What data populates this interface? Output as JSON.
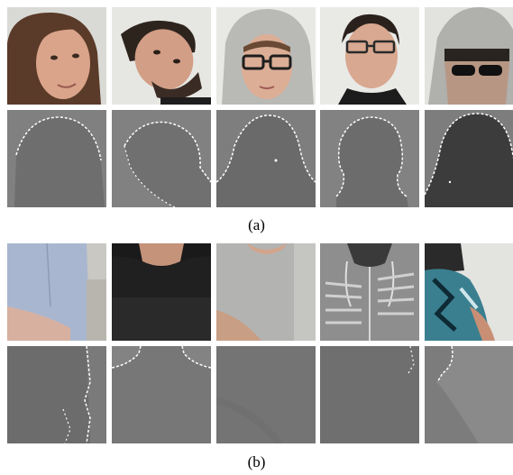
{
  "figure": {
    "panels": [
      {
        "caption": "(a)",
        "rgb_row": [
          {
            "name": "face-woman-brown-hair",
            "bg": "#d9dad6",
            "skin": "#d9a48a",
            "hair": "#5a3a28"
          },
          {
            "name": "face-man-tilted-beard",
            "bg": "#e6e6e2",
            "skin": "#d29e86",
            "hair": "#2e241e"
          },
          {
            "name": "face-woman-hood-glasses",
            "bg": "#e8e8e5",
            "skin": "#dcae96",
            "hair": "#b9b9b6"
          },
          {
            "name": "face-man-glasses",
            "bg": "#e9e9e6",
            "skin": "#d8a890",
            "hair": "#2a211c"
          },
          {
            "name": "face-hood-sunglasses",
            "bg": "#e2e2df",
            "skin": "#b79784",
            "hair": "#b0b0ad"
          }
        ],
        "depth_row": [
          {
            "name": "depth-head-1",
            "bg": "#808080",
            "fg": "#6e6e6e"
          },
          {
            "name": "depth-head-2",
            "bg": "#818181",
            "fg": "#707070"
          },
          {
            "name": "depth-head-3",
            "bg": "#7e7e7e",
            "fg": "#6a6a6a"
          },
          {
            "name": "depth-head-4",
            "bg": "#828282",
            "fg": "#6c6c6c"
          },
          {
            "name": "depth-head-5",
            "bg": "#7d7d7d",
            "fg": "#3c3c3c"
          }
        ]
      },
      {
        "caption": "(b)",
        "rgb_row": [
          {
            "name": "torso-blue-shirt",
            "bg": "#c9c8c2",
            "cloth": "#a9b6cf"
          },
          {
            "name": "torso-black-tshirt",
            "bg": "#1a1a1a",
            "cloth": "#202020"
          },
          {
            "name": "torso-grey-tshirt",
            "bg": "#cfcfcc",
            "cloth": "#b3b3b1"
          },
          {
            "name": "torso-grey-hoodie",
            "bg": "#d6d6d3",
            "cloth": "#8e8e8e"
          },
          {
            "name": "torso-teal-print",
            "bg": "#e3e3e0",
            "cloth": "#3a7f8f"
          }
        ],
        "depth_row": [
          {
            "name": "depth-torso-1",
            "bg": "#7a7a7a",
            "fg": "#6c6c6c"
          },
          {
            "name": "depth-torso-2",
            "bg": "#838383",
            "fg": "#777777"
          },
          {
            "name": "depth-torso-3",
            "bg": "#7c7c7c",
            "fg": "#747474"
          },
          {
            "name": "depth-torso-4",
            "bg": "#797979",
            "fg": "#6f6f6f"
          },
          {
            "name": "depth-torso-5",
            "bg": "#8a8a8a",
            "fg": "#7c7c7c"
          }
        ]
      }
    ]
  }
}
